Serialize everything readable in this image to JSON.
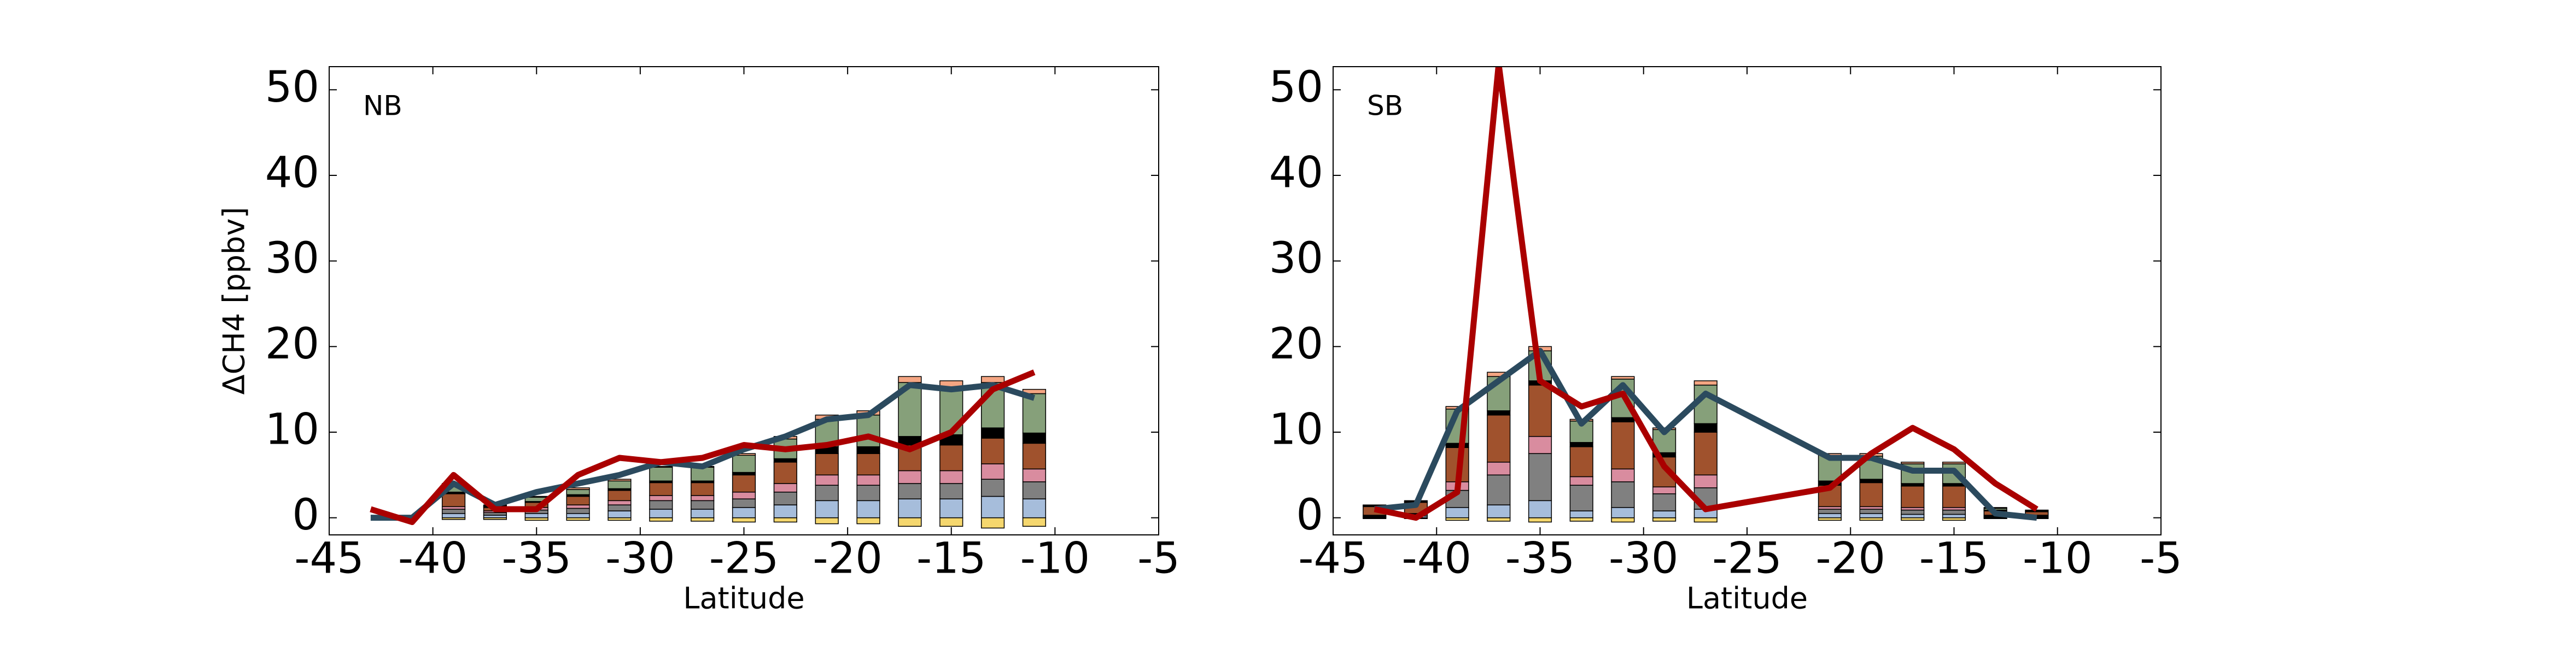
{
  "chart_data": [
    {
      "type": "bar",
      "annotation": "NB",
      "xlabel": "Latitude",
      "ylabel": "ΔCH4 [ppbv]",
      "xlim": [
        -45,
        -5
      ],
      "xticks": [
        -45,
        -40,
        -35,
        -30,
        -25,
        -20,
        -15,
        -10,
        -5
      ],
      "ylim": [
        -2,
        52.7
      ],
      "yticks": [
        0,
        10,
        20,
        30,
        40,
        50
      ],
      "x": [
        -39,
        -37,
        -35,
        -33,
        -31,
        -29,
        -27,
        -25,
        -23,
        -21,
        -19,
        -17,
        -15,
        -13,
        -11
      ],
      "series": [
        {
          "color": "#f5d76e",
          "values": [
            -0.2,
            -0.2,
            -0.3,
            -0.3,
            -0.3,
            -0.4,
            -0.4,
            -0.5,
            -0.5,
            -0.7,
            -0.7,
            -1,
            -1,
            -1.2,
            -1
          ]
        },
        {
          "color": "#a6bddb",
          "values": [
            0.5,
            0.3,
            0.5,
            0.5,
            0.8,
            1,
            1,
            1.2,
            1.5,
            2,
            2,
            2.2,
            2.2,
            2.5,
            2.2
          ]
        },
        {
          "color": "#808080",
          "values": [
            0.5,
            0.3,
            0.4,
            0.6,
            0.7,
            1,
            1,
            1,
            1.5,
            1.8,
            1.8,
            1.8,
            1.8,
            2,
            2
          ]
        },
        {
          "color": "#d98c9f",
          "values": [
            0.3,
            0.2,
            0.3,
            0.4,
            0.5,
            0.6,
            0.6,
            0.8,
            1,
            1.2,
            1.2,
            1.5,
            1.5,
            1.8,
            1.5
          ]
        },
        {
          "color": "#a0522d",
          "values": [
            1.5,
            0.4,
            0.6,
            1,
            1.2,
            1.5,
            1.5,
            2,
            2.5,
            2.5,
            2.5,
            3,
            3,
            3,
            3
          ]
        },
        {
          "color": "#000000",
          "values": [
            0.2,
            0.1,
            0.1,
            0.2,
            0.2,
            0.2,
            0.2,
            0.3,
            0.4,
            0.8,
            0.8,
            1,
            1.2,
            1.2,
            1.2
          ]
        },
        {
          "color": "#86a07a",
          "values": [
            0.8,
            0.1,
            0.5,
            0.6,
            0.9,
            1.6,
            1.6,
            2,
            2.3,
            3.2,
            3.7,
            6.3,
            5.6,
            5.3,
            4.6
          ]
        },
        {
          "color": "#f4a582",
          "values": [
            0.2,
            0.1,
            0.1,
            0.2,
            0.2,
            0.1,
            0.1,
            0.2,
            0.3,
            0.5,
            0.5,
            0.7,
            0.7,
            0.7,
            0.5
          ]
        }
      ],
      "lines": [
        {
          "color": "#2b4a5e",
          "x": [
            -43,
            -41,
            -39,
            -37,
            -35,
            -33,
            -31,
            -29,
            -27,
            -25,
            -23,
            -21,
            -19,
            -17,
            -15,
            -13,
            -11
          ],
          "values": [
            0,
            0,
            4,
            1.5,
            3,
            4,
            5,
            6.5,
            6,
            8,
            9.5,
            11.5,
            12,
            15.5,
            15,
            15.5,
            14
          ]
        },
        {
          "color": "#aa0000",
          "x": [
            -43,
            -41,
            -39,
            -37,
            -35,
            -33,
            -31,
            -29,
            -27,
            -25,
            -23,
            -21,
            -19,
            -17,
            -15,
            -13,
            -11
          ],
          "values": [
            1,
            -0.5,
            5,
            1,
            1,
            5,
            7,
            6.5,
            7,
            8.5,
            8,
            8.5,
            9.5,
            8,
            10,
            15,
            17
          ]
        }
      ]
    },
    {
      "type": "bar",
      "annotation": "SB",
      "xlabel": "Latitude",
      "xlim": [
        -45,
        -5
      ],
      "xticks": [
        -45,
        -40,
        -35,
        -30,
        -25,
        -20,
        -15,
        -10,
        -5
      ],
      "ylim": [
        -2,
        52.7
      ],
      "yticks": [
        0,
        10,
        20,
        30,
        40,
        50
      ],
      "x": [
        -43,
        -41,
        -39,
        -37,
        -35,
        -33,
        -31,
        -29,
        -27,
        -21,
        -19,
        -17,
        -15,
        -13,
        -11
      ],
      "series": [
        {
          "color": "#f5d76e",
          "values": [
            -0.1,
            -0.1,
            -0.3,
            -0.4,
            -0.5,
            -0.4,
            -0.5,
            -0.4,
            -0.5,
            -0.3,
            -0.3,
            -0.3,
            -0.3,
            -0.1,
            -0.1
          ]
        },
        {
          "color": "#a6bddb",
          "values": [
            0.1,
            0.2,
            1.2,
            1.5,
            2,
            0.8,
            1.2,
            0.8,
            1,
            0.5,
            0.5,
            0.4,
            0.4,
            0.1,
            0.1
          ]
        },
        {
          "color": "#808080",
          "values": [
            0.1,
            0.2,
            2,
            3.5,
            5.5,
            3,
            3,
            2,
            2.5,
            0.5,
            0.5,
            0.5,
            0.5,
            0.1,
            0.1
          ]
        },
        {
          "color": "#d98c9f",
          "values": [
            0.1,
            0.1,
            1,
            1.5,
            2,
            1,
            1.5,
            0.8,
            1.5,
            0.3,
            0.3,
            0.3,
            0.3,
            0.1,
            0.1
          ]
        },
        {
          "color": "#a0522d",
          "values": [
            1,
            1.3,
            4,
            5.5,
            6,
            3.5,
            5.5,
            3.5,
            5,
            2.5,
            2.8,
            2.5,
            2.5,
            0.5,
            0.4
          ]
        },
        {
          "color": "#000000",
          "values": [
            0.1,
            0.1,
            0.5,
            0.5,
            0.5,
            0.5,
            0.5,
            0.5,
            1,
            0.5,
            0.4,
            0.3,
            0.3,
            0.1,
            0.1
          ]
        },
        {
          "color": "#86a07a",
          "values": [
            0,
            0,
            4,
            4,
            3.5,
            2.5,
            4.5,
            2.7,
            4.5,
            3,
            2.7,
            2.3,
            2.3,
            0.2,
            0.1
          ]
        },
        {
          "color": "#f4a582",
          "values": [
            0.1,
            0.1,
            0.3,
            0.5,
            0.5,
            0.2,
            0.3,
            0.2,
            0.5,
            0.2,
            0.3,
            0.2,
            0.2,
            0.1,
            0
          ]
        }
      ],
      "lines": [
        {
          "color": "#2b4a5e",
          "x": [
            -43,
            -41,
            -39,
            -37,
            -35,
            -33,
            -31,
            -29,
            -27,
            -21,
            -19,
            -17,
            -15,
            -13,
            -11
          ],
          "values": [
            1,
            1.5,
            12.5,
            16,
            19.5,
            11,
            15.5,
            10,
            14.5,
            7,
            7,
            5.5,
            5.5,
            0.5,
            0
          ]
        },
        {
          "color": "#aa0000",
          "x": [
            -43,
            -41,
            -39,
            -37,
            -35,
            -33,
            -31,
            -29,
            -27,
            -21,
            -19,
            -17,
            -15,
            -13,
            -11
          ],
          "values": [
            1,
            0,
            3,
            53,
            16,
            13,
            14.5,
            6,
            1,
            3.5,
            7.5,
            10.5,
            8,
            4,
            1
          ]
        }
      ]
    }
  ]
}
